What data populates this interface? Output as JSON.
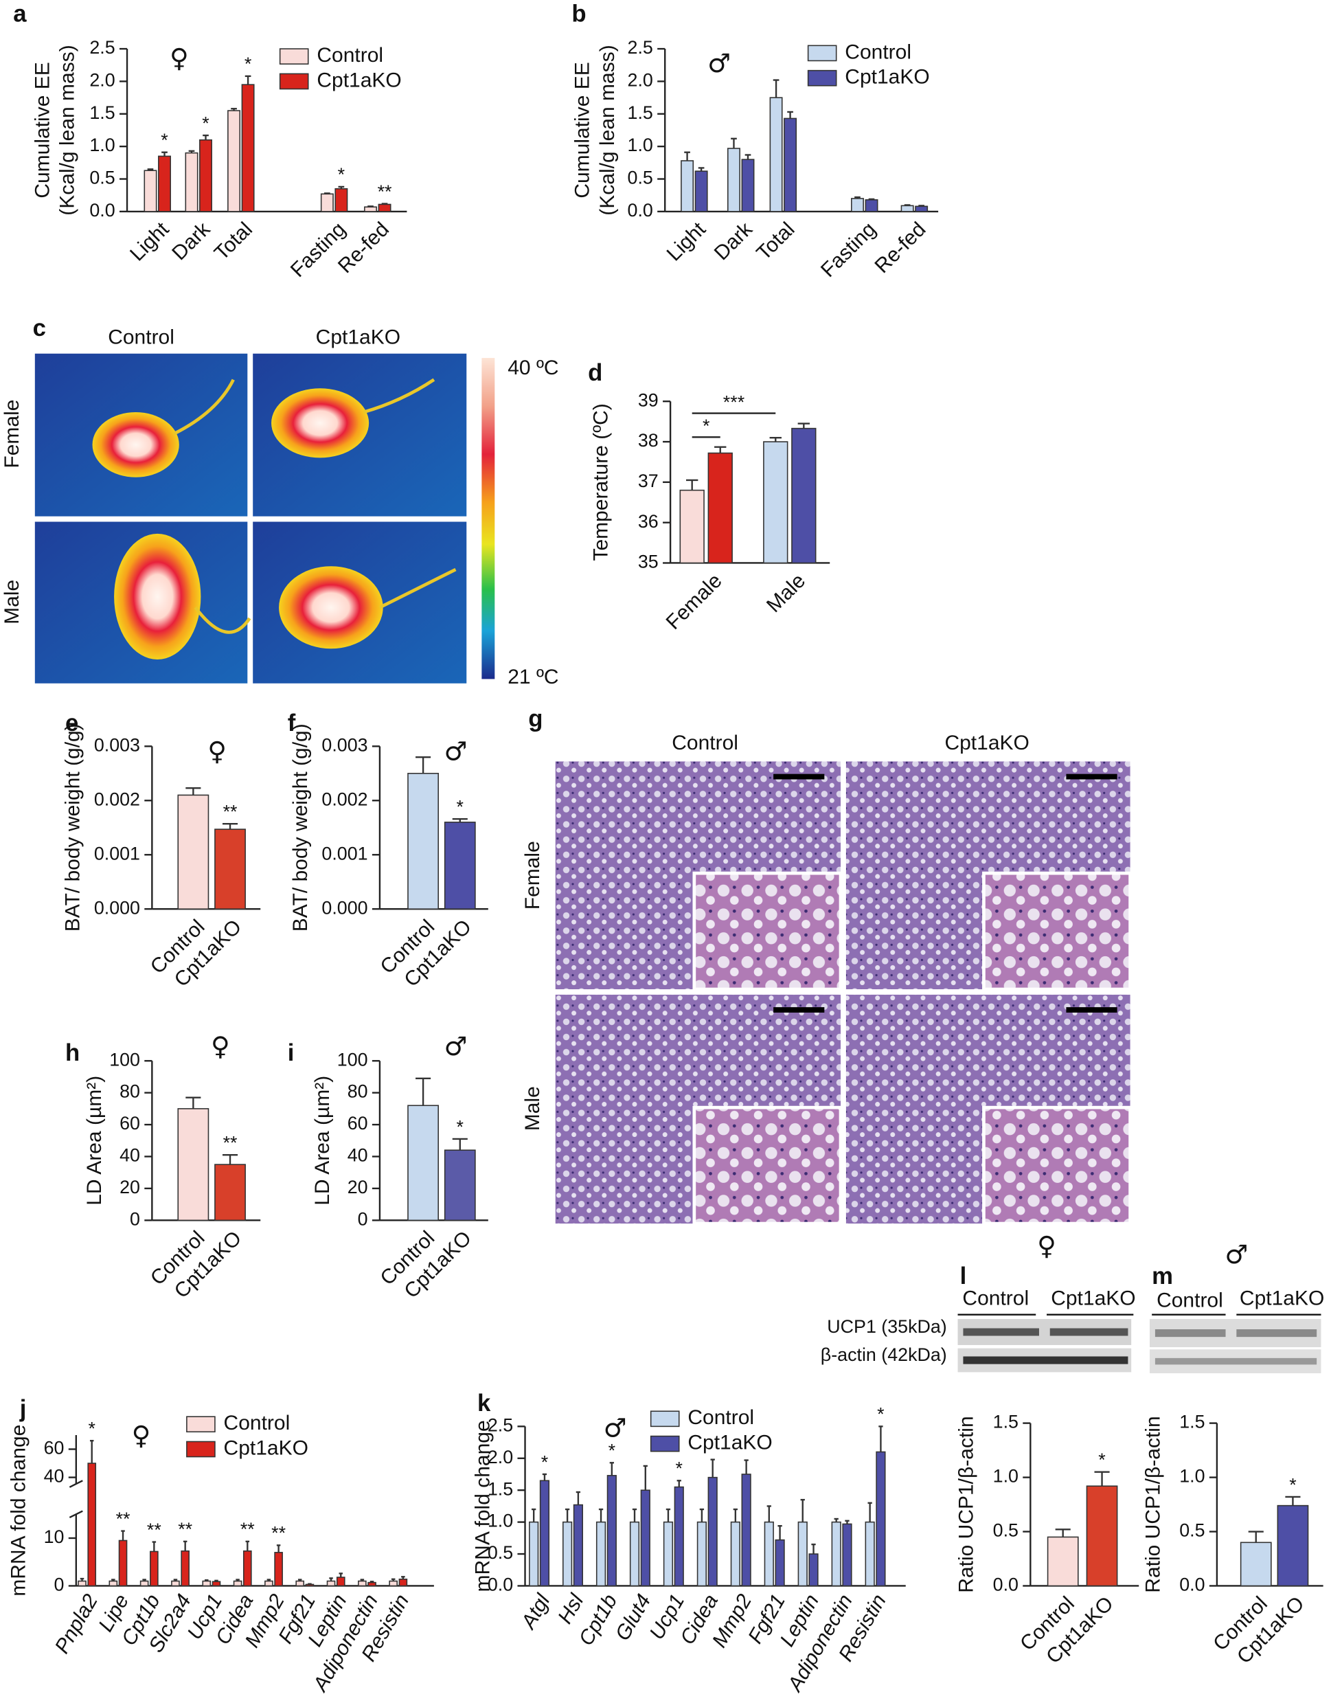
{
  "chart_data": [
    {
      "type": "bar",
      "panel": "a",
      "symbol": "♀",
      "ylabel": [
        "Cumulative EE",
        "(Kcal/g lean mass)"
      ],
      "categories": [
        "Light",
        "Dark",
        "Total",
        "Fasting",
        "Re-fed"
      ],
      "series": [
        {
          "name": "Control",
          "color": "#f9dcd9",
          "values": [
            0.63,
            0.9,
            1.55,
            0.27,
            0.07
          ],
          "errors": [
            0.02,
            0.03,
            0.03,
            0.01,
            0.01
          ]
        },
        {
          "name": "Cpt1aKO",
          "color": "#d8241c",
          "values": [
            0.85,
            1.1,
            1.95,
            0.35,
            0.11
          ],
          "errors": [
            0.06,
            0.07,
            0.13,
            0.03,
            0.01
          ],
          "significance": [
            "*",
            "*",
            "*",
            "*",
            "**"
          ]
        }
      ],
      "ylim": [
        0,
        2.5
      ],
      "yticks": [
        {
          "value": 0,
          "label": "0.0"
        },
        0.5,
        {
          "value": 1,
          "label": "1.0"
        },
        1.5,
        {
          "value": 2,
          "label": "2.0"
        },
        2.5
      ]
    },
    {
      "type": "bar",
      "panel": "b",
      "symbol": "♂",
      "ylabel": [
        "Cumulative EE",
        "(Kcal/g lean mass)"
      ],
      "categories": [
        "Light",
        "Dark",
        "Total",
        "Fasting",
        "Re-fed"
      ],
      "series": [
        {
          "name": "Control",
          "color": "#c6d9ee",
          "values": [
            0.78,
            0.97,
            1.75,
            0.2,
            0.09
          ],
          "errors": [
            0.13,
            0.15,
            0.27,
            0.02,
            0.01
          ]
        },
        {
          "name": "Cpt1aKO",
          "color": "#4e4fa6",
          "values": [
            0.62,
            0.8,
            1.43,
            0.18,
            0.08
          ],
          "errors": [
            0.05,
            0.07,
            0.1,
            0.01,
            0.01
          ]
        }
      ],
      "ylim": [
        0,
        2.5
      ],
      "yticks": [
        {
          "value": 0,
          "label": "0.0"
        },
        0.5,
        {
          "value": 1,
          "label": "1.0"
        },
        1.5,
        {
          "value": 2,
          "label": "2.0"
        },
        2.5
      ]
    },
    {
      "type": "image",
      "panel": "c",
      "columns": [
        "Control",
        "Cpt1aKO"
      ],
      "rows": [
        "Female",
        "Male"
      ],
      "scale_labels": [
        "40 ºC",
        "21 ºC"
      ]
    },
    {
      "type": "bar",
      "panel": "d",
      "ylabel": "Temperature (ºC)",
      "categories": [
        "Female",
        "Male"
      ],
      "series": [
        {
          "colors": [
            "#f9dcd9",
            "#c6d9ee"
          ],
          "values": [
            36.8,
            38.0
          ],
          "errors": [
            0.25,
            0.1
          ]
        },
        {
          "colors": [
            "#d8241c",
            "#4e4fa6"
          ],
          "values": [
            37.72,
            38.33
          ],
          "errors": [
            0.15,
            0.12
          ]
        }
      ],
      "annotations": [
        "*",
        "***"
      ],
      "ylim": [
        35,
        39
      ],
      "yticks": [
        35,
        36,
        37,
        38,
        39
      ]
    },
    {
      "type": "bar",
      "panel": "e",
      "symbol": "♀",
      "ylabel": "BAT/ body weight (g/g)",
      "categories": [
        "Control",
        "Cpt1aKO"
      ],
      "values": [
        0.0021,
        0.00147
      ],
      "errors": [
        0.00013,
        0.0001
      ],
      "colors": [
        "#f9dcd9",
        "#d8402a"
      ],
      "significance": [
        null,
        "**"
      ],
      "ylim": [
        0,
        0.003
      ],
      "yticks": [
        {
          "value": 0,
          "label": "0.000"
        },
        0.001,
        0.002,
        0.003
      ]
    },
    {
      "type": "bar",
      "panel": "f",
      "symbol": "♂",
      "ylabel": "BAT/ body weight (g/g)",
      "categories": [
        "Control",
        "Cpt1aKO"
      ],
      "values": [
        0.0025,
        0.0016
      ],
      "errors": [
        0.0003,
        6e-05
      ],
      "colors": [
        "#c6d9ee",
        "#4e4fa6"
      ],
      "significance": [
        null,
        "*"
      ],
      "ylim": [
        0,
        0.003
      ],
      "yticks": [
        {
          "value": 0,
          "label": "0.000"
        },
        0.001,
        0.002,
        0.003
      ]
    },
    {
      "type": "image",
      "panel": "g",
      "columns": [
        "Control",
        "Cpt1aKO"
      ],
      "rows": [
        "Female",
        "Male"
      ]
    },
    {
      "type": "bar",
      "panel": "h",
      "symbol": "♀",
      "ylabel": "LD Area (µm²)",
      "categories": [
        "Control",
        "Cpt1aKO"
      ],
      "values": [
        70,
        35
      ],
      "errors": [
        7,
        6
      ],
      "colors": [
        "#f9dcd9",
        "#d8402a"
      ],
      "significance": [
        null,
        "**"
      ],
      "ylim": [
        0,
        100
      ],
      "yticks": [
        0,
        20,
        40,
        60,
        80,
        100
      ]
    },
    {
      "type": "bar",
      "panel": "i",
      "symbol": "♂",
      "ylabel": "LD Area (µm²)",
      "categories": [
        "Control",
        "Cpt1aKO"
      ],
      "values": [
        72,
        44
      ],
      "errors": [
        17,
        7
      ],
      "colors": [
        "#c6d9ee",
        "#5b5ba8"
      ],
      "significance": [
        null,
        "*"
      ],
      "ylim": [
        0,
        100
      ],
      "yticks": [
        0,
        20,
        40,
        60,
        80,
        100
      ]
    },
    {
      "type": "bar",
      "panel": "j",
      "symbol": "♀",
      "ylabel": "mRNA fold change",
      "categories": [
        "Pnpla2",
        "Lipe",
        "Cpt1b",
        "Slc2a4",
        "Ucp1",
        "Cidea",
        "Mmp2",
        "Fgf21",
        "Leptin",
        "Adiponectin",
        "Resistin"
      ],
      "series": [
        {
          "name": "Control",
          "color": "#f9dcd9",
          "values": [
            1,
            1,
            1,
            1,
            1,
            1,
            1,
            1,
            1,
            1,
            1
          ],
          "errors": [
            0.5,
            0.3,
            0.3,
            0.3,
            0.2,
            0.3,
            0.3,
            0.3,
            0.6,
            0.3,
            0.4
          ]
        },
        {
          "name": "Cpt1aKO",
          "color": "#d8241c",
          "values": [
            50,
            9.5,
            7.2,
            7.3,
            0.9,
            7.3,
            7,
            0.3,
            1.8,
            0.7,
            1.4
          ],
          "errors": [
            16,
            2,
            2,
            2,
            0.2,
            2,
            1.5,
            0.1,
            0.8,
            0.2,
            0.5
          ],
          "significance": [
            "*",
            "**",
            "**",
            "**",
            null,
            "**",
            "**",
            null,
            null,
            null,
            null
          ]
        }
      ],
      "ylim": [
        0,
        70
      ],
      "yticks": [
        0,
        10,
        40,
        60
      ]
    },
    {
      "type": "bar",
      "panel": "k",
      "symbol": "♂",
      "ylabel": "mRNA fold change",
      "categories": [
        "Atgl",
        "Hsl",
        "Cpt1b",
        "Glut4",
        "Ucp1",
        "Cidea",
        "Mmp2",
        "Fgf21",
        "Leptin",
        "Adiponectin",
        "Resistin"
      ],
      "series": [
        {
          "name": "Control",
          "color": "#c6d9ee",
          "values": [
            1,
            1,
            1,
            1,
            1,
            1,
            1,
            1,
            1,
            1,
            1
          ],
          "errors": [
            0.2,
            0.2,
            0.2,
            0.2,
            0.2,
            0.2,
            0.2,
            0.25,
            0.35,
            0.05,
            0.3
          ]
        },
        {
          "name": "Cpt1aKO",
          "color": "#4e4fa6",
          "values": [
            1.65,
            1.27,
            1.73,
            1.5,
            1.55,
            1.7,
            1.75,
            0.72,
            0.5,
            0.97,
            2.1
          ],
          "errors": [
            0.1,
            0.2,
            0.2,
            0.38,
            0.1,
            0.28,
            0.22,
            0.22,
            0.15,
            0.05,
            0.4
          ],
          "significance": [
            "*",
            null,
            "*",
            null,
            "*",
            null,
            null,
            null,
            null,
            null,
            "*"
          ]
        }
      ],
      "ylim": [
        0,
        2.5
      ],
      "yticks": [
        {
          "value": 0,
          "label": "0.0"
        },
        0.5,
        {
          "value": 1,
          "label": "1.0"
        },
        1.5,
        {
          "value": 2,
          "label": "2.0"
        },
        2.5
      ]
    },
    {
      "type": "bar",
      "panel": "l",
      "symbol": "♀",
      "blot": {
        "columns": [
          "Control",
          "Cpt1aKO"
        ],
        "rows": [
          "UCP1 (35kDa)",
          "β-actin (42kDa)"
        ]
      },
      "ylabel": "Ratio UCP1/β-actin",
      "categories": [
        "Control",
        "Cpt1aKO"
      ],
      "values": [
        0.45,
        0.92
      ],
      "errors": [
        0.07,
        0.13
      ],
      "colors": [
        "#f9dcd9",
        "#d8402a"
      ],
      "significance": [
        null,
        "*"
      ],
      "ylim": [
        0,
        1.5
      ],
      "yticks": [
        {
          "value": 0,
          "label": "0.0"
        },
        0.5,
        {
          "value": 1,
          "label": "1.0"
        },
        1.5
      ]
    },
    {
      "type": "bar",
      "panel": "m",
      "symbol": "♂",
      "blot": {
        "columns": [
          "Control",
          "Cpt1aKO"
        ]
      },
      "ylabel": "Ratio UCP1/β-actin",
      "categories": [
        "Control",
        "Cpt1aKO"
      ],
      "values": [
        0.4,
        0.74
      ],
      "errors": [
        0.1,
        0.08
      ],
      "colors": [
        "#c6d9ee",
        "#4e4fa6"
      ],
      "significance": [
        null,
        "*"
      ],
      "ylim": [
        0,
        1.5
      ],
      "yticks": [
        {
          "value": 0,
          "label": "0.0"
        },
        0.5,
        {
          "value": 1,
          "label": "1.0"
        },
        1.5
      ]
    }
  ]
}
